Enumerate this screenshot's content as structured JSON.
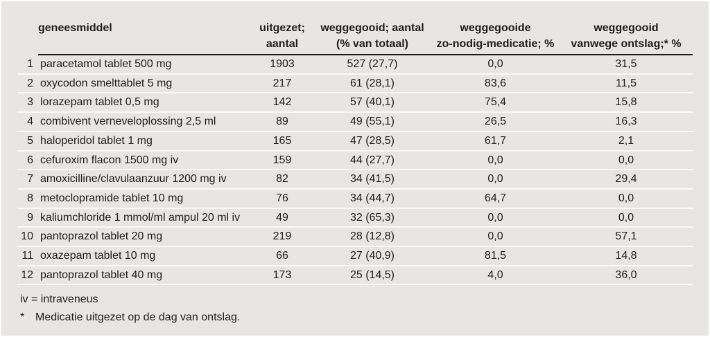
{
  "colors": {
    "panel_background": "#e7e6e4",
    "text": "#1d1d1b",
    "header_rule": "#1c1c1b",
    "row_separator": "#fafaf8"
  },
  "table": {
    "headers": {
      "drug_l1": "geneesmiddel",
      "drug_l2": "",
      "dispensed_l1": "uitgezet;",
      "dispensed_l2": "aantal",
      "discarded_l1": "weggegooid; aantal",
      "discarded_l2": "(% van totaal)",
      "prn_l1": "weggegooide",
      "prn_l2": "zo-nodig-medicatie; %",
      "discharge_l1": "weggegooid",
      "discharge_l2": "vanwege ontslag;* %"
    },
    "rows": [
      {
        "rank": "1",
        "drug": "paracetamol tablet 500 mg",
        "dispensed": "1903",
        "discarded": "527 (27,7)",
        "prn": "0,0",
        "discharge": "31,5"
      },
      {
        "rank": "2",
        "drug": "oxycodon smelttablet 5 mg",
        "dispensed": "217",
        "discarded": "61 (28,1)",
        "prn": "83,6",
        "discharge": "11,5"
      },
      {
        "rank": "3",
        "drug": "lorazepam tablet 0,5 mg",
        "dispensed": "142",
        "discarded": "57 (40,1)",
        "prn": "75,4",
        "discharge": "15,8"
      },
      {
        "rank": "4",
        "drug": "combivent verneveloplossing 2,5 ml",
        "dispensed": "89",
        "discarded": "49 (55,1)",
        "prn": "26,5",
        "discharge": "16,3"
      },
      {
        "rank": "5",
        "drug": "haloperidol tablet 1 mg",
        "dispensed": "165",
        "discarded": "47 (28,5)",
        "prn": "61,7",
        "discharge": "2,1"
      },
      {
        "rank": "6",
        "drug": "cefuroxim flacon 1500 mg iv",
        "dispensed": "159",
        "discarded": "44 (27,7)",
        "prn": "0,0",
        "discharge": "0,0"
      },
      {
        "rank": "7",
        "drug": "amoxicilline/clavulaanzuur 1200 mg iv",
        "dispensed": "82",
        "discarded": "34 (41,5)",
        "prn": "0,0",
        "discharge": "29,4"
      },
      {
        "rank": "8",
        "drug": "metoclopramide tablet 10 mg",
        "dispensed": "76",
        "discarded": "34 (44,7)",
        "prn": "64,7",
        "discharge": "0,0"
      },
      {
        "rank": "9",
        "drug": "kaliumchloride 1 mmol/ml ampul 20 ml iv",
        "dispensed": "49",
        "discarded": "32 (65,3)",
        "prn": "0,0",
        "discharge": "0,0"
      },
      {
        "rank": "10",
        "drug": "pantoprazol tablet 20 mg",
        "dispensed": "219",
        "discarded": "28 (12,8)",
        "prn": "0,0",
        "discharge": "57,1"
      },
      {
        "rank": "11",
        "drug": "oxazepam tablet 10 mg",
        "dispensed": "66",
        "discarded": "27 (40,9)",
        "prn": "81,5",
        "discharge": "14,8"
      },
      {
        "rank": "12",
        "drug": "pantoprazol tablet 40 mg",
        "dispensed": "173",
        "discarded": "25 (14,5)",
        "prn": "4,0",
        "discharge": "36,0"
      }
    ]
  },
  "footnotes": {
    "iv_note": "iv = intraveneus",
    "star_marker": "*",
    "star_note": "Medicatie uitgezet op de dag van ontslag."
  }
}
